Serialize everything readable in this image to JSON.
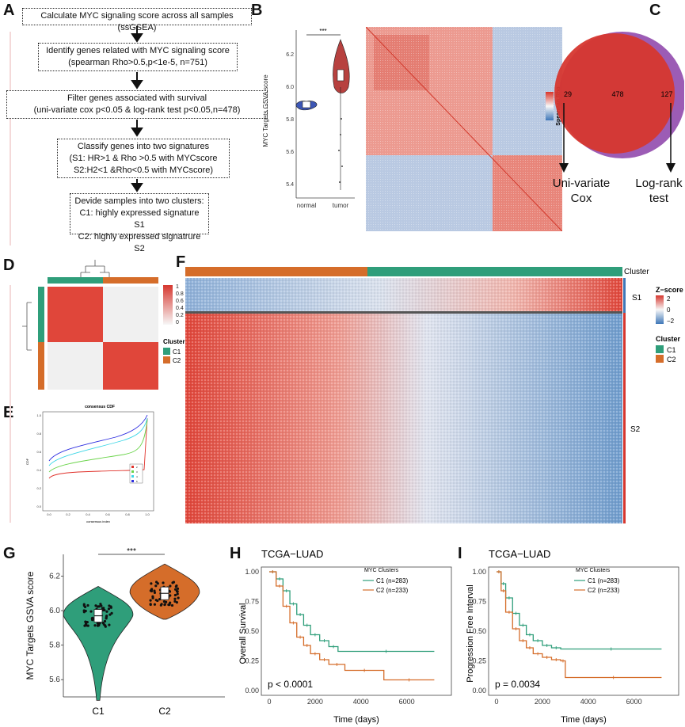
{
  "panels": {
    "A": "A",
    "B": "B",
    "C": "C",
    "D": "D",
    "E": "E",
    "F": "F",
    "G": "G",
    "H": "H",
    "I": "I"
  },
  "flow": {
    "step1": "Calculate MYC signaling score across all samples (ssGSEA)",
    "step2_l1": "Identify genes related with MYC signaling score",
    "step2_l2": "(spearman Rho>0.5,p<1e-5, n=751)",
    "step3_l1": "Filter genes associated with survival",
    "step3_l2": "(uni-variate cox p<0.05 & log-rank test p<0.05,n=478)",
    "step4_l1": "Classify genes into two signatures",
    "step4_l2": "(S1: HR>1 & Rho >0.5 with MYCscore",
    "step4_l3": "S2:H2<1 &Rho<0.5 with MYCscore)",
    "step5_l1": "Devide samples into two clusters:",
    "step5_l2": "C1: highly expressed signature S1",
    "step5_l3": "C2: highly expressed signatrure S2"
  },
  "panelB": {
    "ylabel": "MYC Targets GSVA score",
    "yticks": [
      "6.2",
      "6.0",
      "5.8",
      "5.6",
      "5.4"
    ],
    "groups": [
      "normal",
      "tumor"
    ],
    "sig": "***",
    "heat_legend": "Spearman Rho"
  },
  "panelC": {
    "left_only": "29",
    "overlap": "478",
    "right_only": "127",
    "left_label_l1": "Uni-variate",
    "left_label_l2": "Cox",
    "right_label_l1": "Log-rank",
    "right_label_l2": "test"
  },
  "panelD": {
    "legend_ticks": [
      "1",
      "0.8",
      "0.6",
      "0.4",
      "0.2",
      "0"
    ],
    "cluster_title": "Cluster",
    "c1": "C1",
    "c2": "C2"
  },
  "panelE": {
    "title": "consensus CDF",
    "xlabel": "consensus index",
    "ylabel": "CDF",
    "yticks": [
      "1.0",
      "0.8",
      "0.6",
      "0.4",
      "0.2",
      "0.0"
    ],
    "xticks": [
      "0.0",
      "0.2",
      "0.4",
      "0.6",
      "0.8",
      "1.0"
    ],
    "legend": [
      "2",
      "3",
      "4",
      "5"
    ]
  },
  "panelF": {
    "cluster_label": "Cluster",
    "s1": "S1",
    "s2": "S2",
    "zscore_title": "Z−score",
    "z_ticks": [
      "2",
      "0",
      "−2"
    ],
    "cluster_title": "Cluster",
    "c1": "C1",
    "c2": "C2"
  },
  "colors": {
    "c1": "#2f9e7a",
    "c2": "#d56d2a",
    "red": "#d9352a",
    "blue": "#3f77b8"
  },
  "chart_data": [
    {
      "type": "violin",
      "panel": "G",
      "categories": [
        "C1",
        "C2"
      ],
      "medians": [
        5.97,
        6.1
      ],
      "ranges": [
        [
          5.48,
          6.14
        ],
        [
          5.95,
          6.27
        ]
      ],
      "ylabel": "MYC Targets GSVA score",
      "yticks": [
        "6.2",
        "6.0",
        "5.8",
        "5.6"
      ],
      "ylim": [
        5.5,
        6.28
      ],
      "significance": "***"
    },
    {
      "type": "line",
      "panel": "H",
      "title": "TCGA−LUAD",
      "xlabel": "Time (days)",
      "ylabel": "Overall Survival",
      "xticks": [
        "0",
        "2000",
        "4000",
        "6000"
      ],
      "yticks": [
        "1.00",
        "0.75",
        "0.50",
        "0.25",
        "0.00"
      ],
      "legend_title": "MYC Clusters",
      "pvalue": "p < 0.0001",
      "series": [
        {
          "name": "C1 (n=283)",
          "x": [
            0,
            300,
            600,
            900,
            1200,
            1500,
            1800,
            2200,
            2600,
            3000,
            7200
          ],
          "y": [
            1.0,
            0.94,
            0.84,
            0.73,
            0.64,
            0.55,
            0.47,
            0.42,
            0.37,
            0.33,
            0.33
          ]
        },
        {
          "name": "C2 (n=233)",
          "x": [
            0,
            300,
            600,
            900,
            1200,
            1500,
            1800,
            2200,
            2600,
            3300,
            5000,
            7200
          ],
          "y": [
            1.0,
            0.88,
            0.71,
            0.57,
            0.45,
            0.38,
            0.31,
            0.26,
            0.22,
            0.17,
            0.09,
            0.09
          ]
        }
      ]
    },
    {
      "type": "line",
      "panel": "I",
      "title": "TCGA−LUAD",
      "xlabel": "Time (days)",
      "ylabel": "Progression Free Interval",
      "xticks": [
        "0",
        "2000",
        "4000",
        "6000"
      ],
      "yticks": [
        "1.00",
        "0.75",
        "0.50",
        "0.25",
        "0.00"
      ],
      "legend_title": "MYC Clusters",
      "pvalue": "p = 0.0034",
      "series": [
        {
          "name": "C1 (n=283)",
          "x": [
            0,
            200,
            400,
            700,
            1000,
            1300,
            1600,
            2000,
            2400,
            2800,
            7200
          ],
          "y": [
            1.0,
            0.9,
            0.78,
            0.65,
            0.55,
            0.47,
            0.42,
            0.38,
            0.36,
            0.35,
            0.35
          ]
        },
        {
          "name": "C2 (n=233)",
          "x": [
            0,
            200,
            400,
            700,
            1000,
            1300,
            1600,
            2000,
            2400,
            2800,
            3000,
            7200
          ],
          "y": [
            1.0,
            0.84,
            0.66,
            0.52,
            0.42,
            0.36,
            0.31,
            0.28,
            0.26,
            0.25,
            0.11,
            0.11
          ]
        }
      ]
    }
  ]
}
